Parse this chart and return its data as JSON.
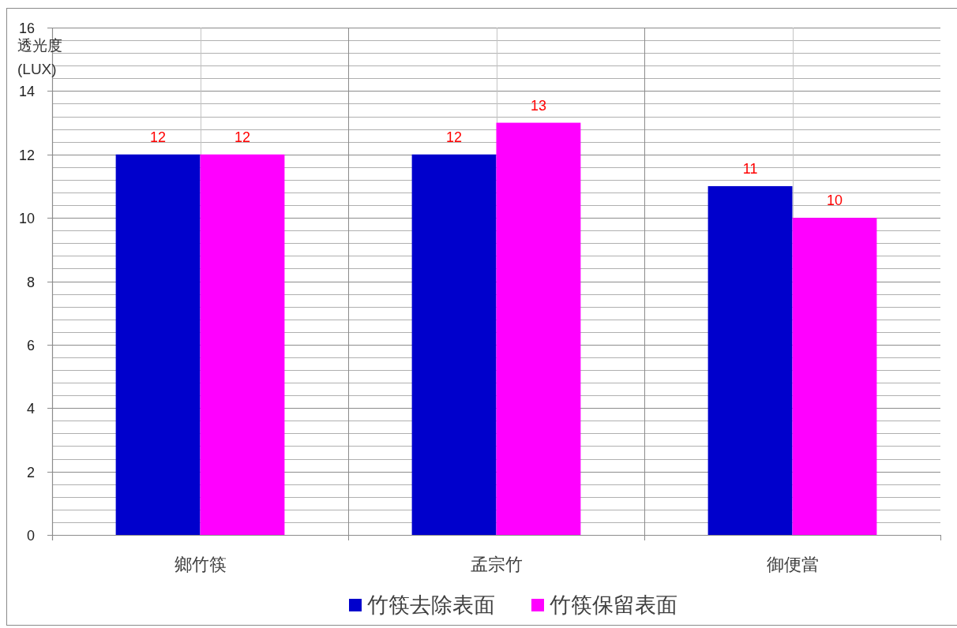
{
  "chart_data": {
    "type": "bar",
    "ylabel": "透光度\n(LUX)",
    "categories": [
      "鄉竹筷",
      "孟宗竹",
      "御便當"
    ],
    "series": [
      {
        "name": "竹筷去除表面",
        "color": "#0000cc",
        "values": [
          12,
          12,
          11
        ]
      },
      {
        "name": "竹筷保留表面",
        "color": "#ff00ff",
        "values": [
          12,
          13,
          10
        ]
      }
    ],
    "ylim": [
      0,
      16
    ],
    "yticks": [
      0,
      {
        "value": 0.4,
        "label": null
      },
      {
        "value": 0.8,
        "label": null
      },
      {
        "value": 1.2,
        "label": null
      },
      {
        "value": 1.6,
        "label": null
      },
      2,
      {
        "value": 2.4,
        "label": null
      },
      {
        "value": 2.8,
        "label": null
      },
      {
        "value": 3.2,
        "label": null
      },
      {
        "value": 3.6,
        "label": null
      },
      4,
      {
        "value": 4.4,
        "label": null
      },
      {
        "value": 4.8,
        "label": null
      },
      {
        "value": 5.2,
        "label": null
      },
      {
        "value": 5.6,
        "label": null
      },
      6,
      {
        "value": 6.4,
        "label": null
      },
      {
        "value": 6.8,
        "label": null
      },
      {
        "value": 7.2,
        "label": null
      },
      {
        "value": 7.6,
        "label": null
      },
      8,
      {
        "value": 8.4,
        "label": null
      },
      {
        "value": 8.8,
        "label": null
      },
      {
        "value": 9.2,
        "label": null
      },
      {
        "value": 9.6,
        "label": null
      },
      10,
      {
        "value": 10.4,
        "label": null
      },
      {
        "value": 10.8,
        "label": null
      },
      {
        "value": 11.2,
        "label": null
      },
      {
        "value": 11.6,
        "label": null
      },
      12,
      {
        "value": 12.4,
        "label": null
      },
      {
        "value": 12.8,
        "label": null
      },
      {
        "value": 13.2,
        "label": null
      },
      {
        "value": 13.6,
        "label": null
      },
      14,
      {
        "value": 14.4,
        "label": null
      },
      {
        "value": 14.8,
        "label": null
      },
      {
        "value": 15.2,
        "label": null
      },
      {
        "value": 15.6,
        "label": null
      },
      16
    ],
    "grid": true,
    "legend": "bottom",
    "data_labels": true
  }
}
